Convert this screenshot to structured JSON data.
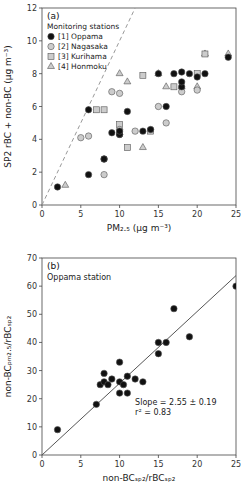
{
  "chart_data": [
    {
      "type": "scatter",
      "title": "(a)",
      "x_label": "PM₂.₅ (μg m⁻³)",
      "y_label": "SP2 rBC + non-BC (μg m⁻³)",
      "xlim": [
        0,
        25
      ],
      "ylim": [
        0,
        12
      ],
      "xticks": [
        0,
        5,
        10,
        15,
        20,
        25
      ],
      "yticks": [
        0,
        2,
        4,
        6,
        8,
        10,
        12
      ],
      "grid": false,
      "legend": "upper left",
      "legend_title": "Monitoring stations",
      "series": [
        {
          "name": "[1] Oppama",
          "color": "#111111",
          "marker": "circle",
          "x": [
            2,
            6,
            6,
            8,
            8,
            9,
            10,
            10,
            10,
            11,
            13,
            14,
            15,
            16,
            17,
            18,
            18,
            18,
            19,
            20,
            21,
            24
          ],
          "values": [
            1.1,
            5.8,
            1.85,
            2.8,
            2.8,
            4.4,
            4.3,
            4.3,
            4.5,
            5.7,
            4.5,
            4.6,
            8.0,
            6.0,
            8.0,
            8.1,
            7.2,
            7.5,
            8.0,
            7.8,
            8.0,
            9.0
          ]
        },
        {
          "name": "[2] Nagasaka",
          "color": "#cccccc",
          "marker": "circle",
          "x": [
            5,
            6,
            8,
            9,
            10,
            10,
            12,
            15,
            16,
            18,
            20
          ],
          "values": [
            4.1,
            4.2,
            1.85,
            6.9,
            4.6,
            6.8,
            4.5,
            6.0,
            5.0,
            6.9,
            7.0
          ]
        },
        {
          "name": "[3] Kurihama",
          "color": "#cccccc",
          "marker": "square",
          "x": [
            7,
            8,
            10,
            11,
            13,
            14,
            17,
            20,
            21
          ],
          "values": [
            5.8,
            5.8,
            4.9,
            3.5,
            7.9,
            4.5,
            7.2,
            8.0,
            9.2
          ]
        },
        {
          "name": "[4] Honmoku",
          "color": "#cccccc",
          "marker": "triangle",
          "x": [
            3,
            10,
            11,
            13,
            15,
            16,
            18,
            20,
            21,
            24
          ],
          "values": [
            1.2,
            8.0,
            7.5,
            3.5,
            8.0,
            7.2,
            7.2,
            7.2,
            9.2,
            9.2
          ]
        },
        {
          "type": "line",
          "color": "#999999",
          "line_style": "dashed",
          "x": [
            0,
            12
          ],
          "values": [
            0,
            12
          ]
        }
      ]
    },
    {
      "type": "scatter",
      "title": "(b)",
      "subtitle": "Oppama station",
      "x_label": "non-BCₛₚ₂/rBCₛₚ₂",
      "y_label": "non-BCₚₘ₂.₅/rBCₛₚ₂",
      "xlim": [
        0,
        25
      ],
      "ylim": [
        0,
        70
      ],
      "xticks": [
        0,
        5,
        10,
        15,
        20,
        25
      ],
      "yticks": [
        0,
        10,
        20,
        30,
        40,
        50,
        60,
        70
      ],
      "grid": false,
      "annotation": "Slope = 2.55 ± 0.19\nr² = 0.83",
      "series": [
        {
          "color": "#111111",
          "marker": "circle",
          "x": [
            2,
            7,
            7.5,
            8,
            8,
            8.5,
            9,
            10,
            10,
            10,
            10.5,
            11,
            11,
            12,
            13,
            15,
            15,
            16,
            17,
            19,
            25
          ],
          "values": [
            9,
            18,
            25,
            26,
            29,
            25,
            27,
            22,
            26,
            33,
            25,
            28,
            22,
            27,
            26,
            40,
            36,
            40,
            52,
            42,
            60
          ]
        },
        {
          "type": "line",
          "color": "#555555",
          "line_style": "solid",
          "x": [
            0,
            25
          ],
          "values": [
            0,
            63.75
          ]
        }
      ]
    }
  ]
}
